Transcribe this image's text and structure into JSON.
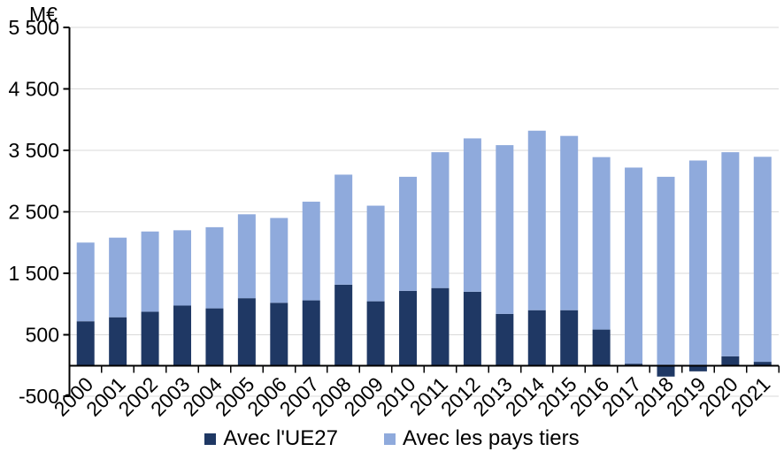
{
  "chart_data": {
    "type": "bar",
    "stacked": true,
    "title": "",
    "unit_label": "M€",
    "xlabel": "",
    "ylabel": "M€",
    "ylim": [
      -500,
      5500
    ],
    "grid": true,
    "legend_position": "bottom",
    "categories": [
      "2000",
      "2001",
      "2002",
      "2003",
      "2004",
      "2005",
      "2006",
      "2007",
      "2008",
      "2009",
      "2010",
      "2011",
      "2012",
      "2013",
      "2014",
      "2015",
      "2016",
      "2017",
      "2018",
      "2019",
      "2020",
      "2021"
    ],
    "series": [
      {
        "name": "Avec l'UE27",
        "color": "#1F3864",
        "values": [
          720,
          785,
          875,
          975,
          930,
          1095,
          1020,
          1060,
          1315,
          1045,
          1215,
          1260,
          1200,
          840,
          900,
          900,
          585,
          30,
          -180,
          -95,
          150,
          60
        ]
      },
      {
        "name": "Avec les pays tiers",
        "color": "#8FAADC",
        "values": [
          1280,
          1295,
          1305,
          1225,
          1320,
          1365,
          1380,
          1605,
          1790,
          1555,
          1855,
          2210,
          2495,
          2745,
          2920,
          2835,
          2805,
          3190,
          3070,
          3335,
          3320,
          3335
        ]
      }
    ],
    "yticks": [
      {
        "value": 5500,
        "label": "5 500"
      },
      {
        "value": 4500,
        "label": "4 500"
      },
      {
        "value": 3500,
        "label": "3 500"
      },
      {
        "value": 2500,
        "label": "2 500"
      },
      {
        "value": 1500,
        "label": "1 500"
      },
      {
        "value": 500,
        "label": "500"
      },
      {
        "value": -500,
        "label": "-500"
      }
    ],
    "colors": {
      "gridline": "#D9D9D9",
      "axis": "#000000",
      "text": "#000000"
    }
  },
  "legend": {
    "items": [
      {
        "label": "Avec l'UE27"
      },
      {
        "label": "Avec les pays tiers"
      }
    ]
  }
}
